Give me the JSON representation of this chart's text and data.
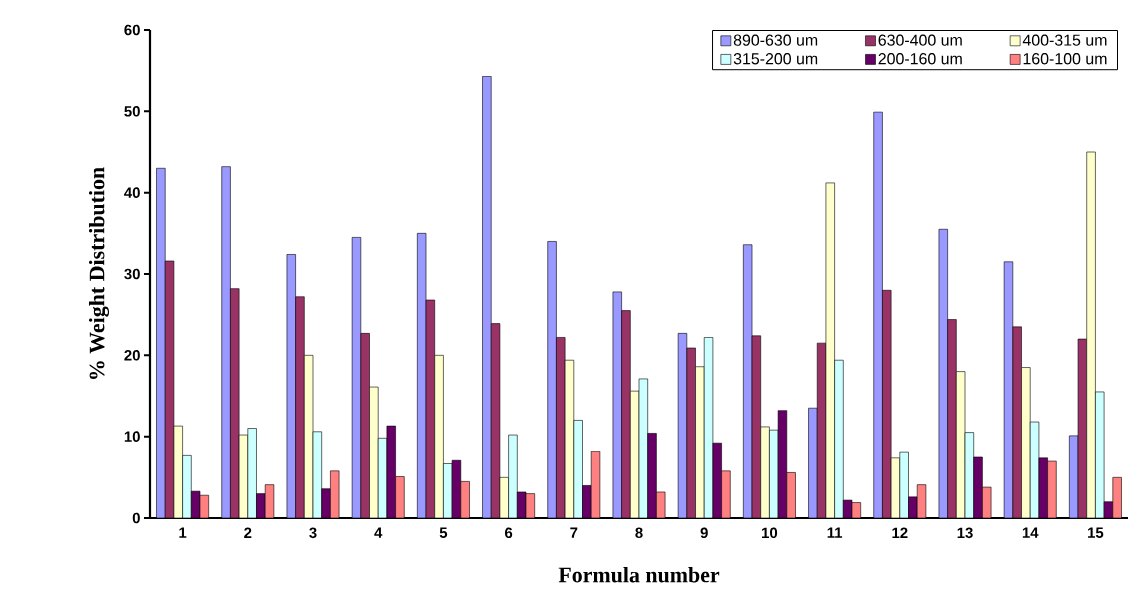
{
  "chart_data": {
    "type": "bar",
    "xlabel": "Formula number",
    "ylabel": "% Weight Distribution",
    "categories": [
      "1",
      "2",
      "3",
      "4",
      "5",
      "6",
      "7",
      "8",
      "9",
      "10",
      "11",
      "12",
      "13",
      "14",
      "15"
    ],
    "series": [
      {
        "name": "890-630 um",
        "color": "#9999ff",
        "values": [
          43,
          43.2,
          32.4,
          34.5,
          35,
          54.3,
          34,
          27.8,
          22.7,
          33.6,
          13.5,
          49.9,
          35.5,
          31.5,
          10.1
        ]
      },
      {
        "name": "630-400 um",
        "color": "#993366",
        "values": [
          31.6,
          28.2,
          27.2,
          22.7,
          26.8,
          23.9,
          22.2,
          25.5,
          20.9,
          22.4,
          21.5,
          28,
          24.4,
          23.5,
          22
        ]
      },
      {
        "name": "400-315 um",
        "color": "#ffffcc",
        "values": [
          11.3,
          10.2,
          20,
          16.1,
          20,
          5,
          19.4,
          15.6,
          18.6,
          11.2,
          41.2,
          7.4,
          18,
          18.5,
          45
        ]
      },
      {
        "name": "315-200 um",
        "color": "#ccffff",
        "values": [
          7.7,
          11,
          10.6,
          9.8,
          6.7,
          10.2,
          12,
          17.1,
          22.2,
          10.8,
          19.4,
          8.1,
          10.5,
          11.8,
          15.5
        ]
      },
      {
        "name": "200-160 um",
        "color": "#660066",
        "values": [
          3.3,
          3,
          3.6,
          11.3,
          7.1,
          3.2,
          4,
          10.4,
          9.2,
          13.2,
          2.2,
          2.6,
          7.5,
          7.4,
          2
        ]
      },
      {
        "name": "160-100 um",
        "color": "#ff8080",
        "values": [
          2.8,
          4.1,
          5.8,
          5.1,
          4.5,
          3,
          8.2,
          3.2,
          5.8,
          5.6,
          1.9,
          4.1,
          3.8,
          7,
          5
        ]
      }
    ],
    "ylim": [
      0,
      60
    ],
    "yticks": [
      0,
      10,
      20,
      30,
      40,
      50,
      60
    ],
    "grid": false,
    "legend": "top right"
  }
}
